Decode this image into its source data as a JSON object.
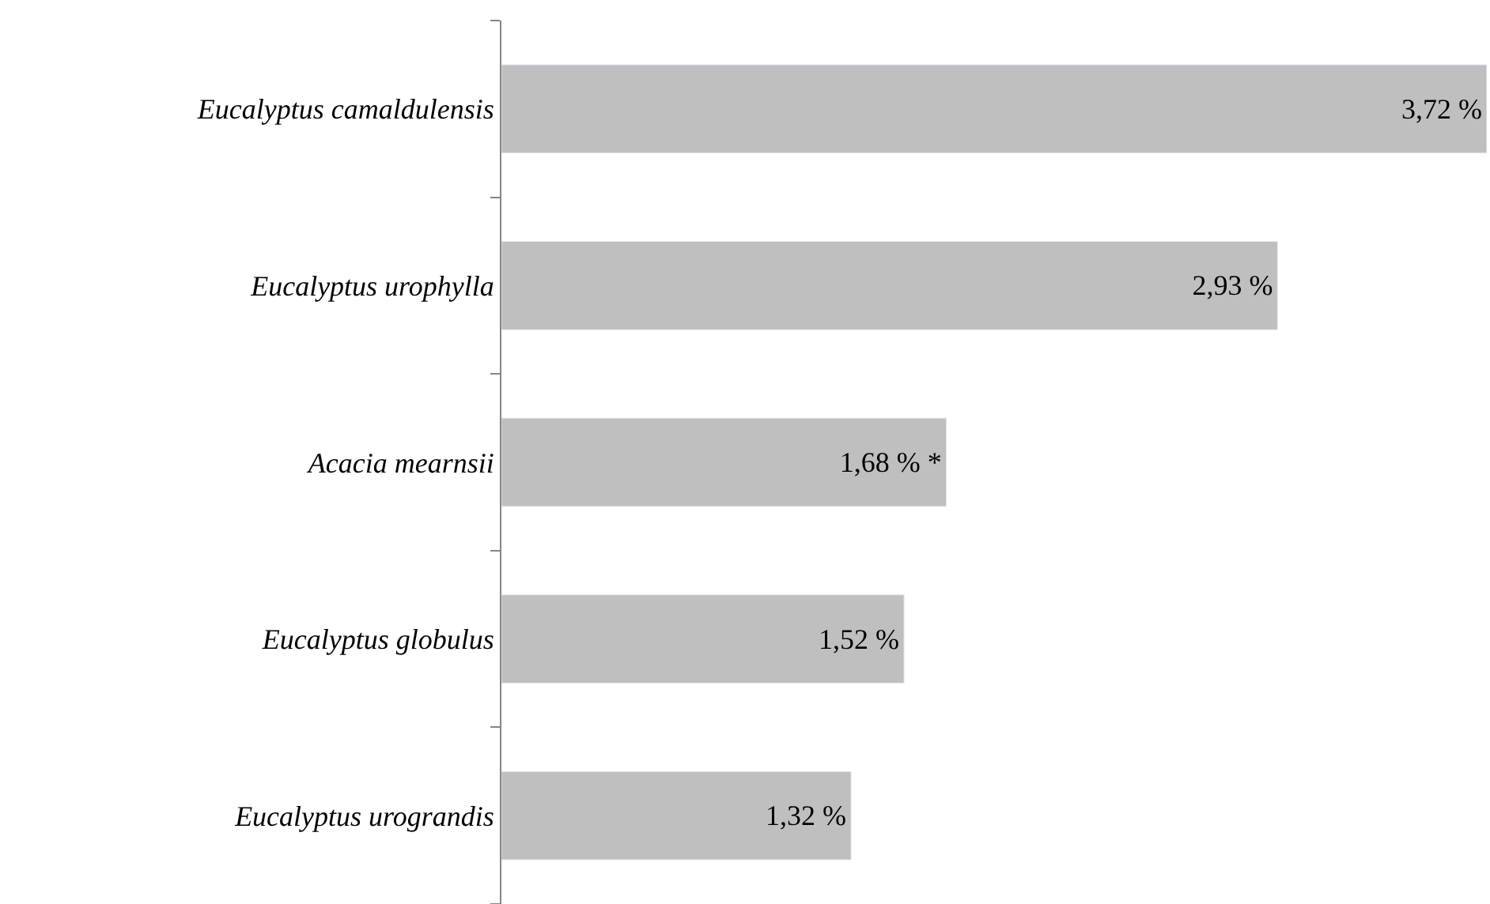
{
  "chart_data": {
    "type": "bar",
    "orientation": "horizontal",
    "categories": [
      "Eucalyptus camaldulensis",
      "Eucalyptus urophylla",
      "Acacia mearnsii",
      "Eucalyptus globulus",
      "Eucalyptus urograndis"
    ],
    "values": [
      3.72,
      2.93,
      1.68,
      1.52,
      1.32
    ],
    "value_labels": [
      "3,72 %",
      "2,93 %",
      "1,68 % *",
      "1,52 %",
      "1,32 %"
    ],
    "color": "#bfbfbf"
  }
}
